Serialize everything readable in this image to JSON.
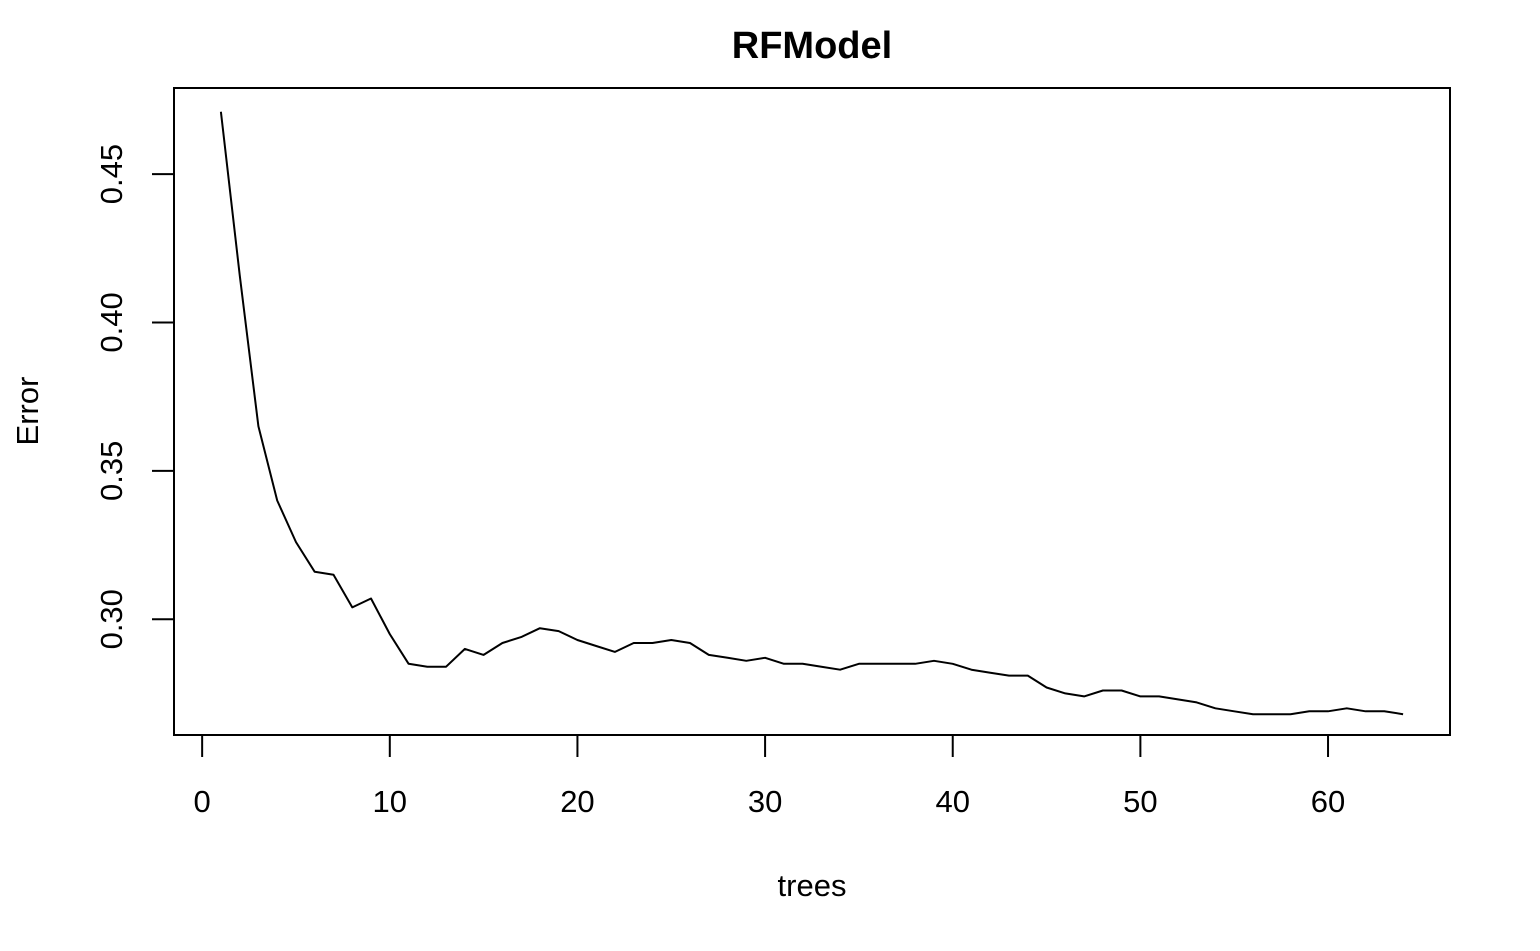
{
  "chart_data": {
    "type": "line",
    "title": "RFModel",
    "xlabel": "trees",
    "ylabel": "Error",
    "xlim": [
      -1.5,
      66.5
    ],
    "ylim": [
      0.261,
      0.479
    ],
    "xticks": [
      0,
      10,
      20,
      30,
      40,
      50,
      60
    ],
    "xtick_labels": [
      "0",
      "10",
      "20",
      "30",
      "40",
      "50",
      "60"
    ],
    "yticks": [
      0.3,
      0.35,
      0.4,
      0.45
    ],
    "ytick_labels": [
      "0.30",
      "0.35",
      "0.40",
      "0.45"
    ],
    "grid": false,
    "series": [
      {
        "x": [
          1,
          2,
          3,
          4,
          5,
          6,
          7,
          8,
          9,
          10,
          11,
          12,
          13,
          14,
          15,
          16,
          17,
          18,
          19,
          20,
          21,
          22,
          23,
          24,
          25,
          26,
          27,
          28,
          29,
          30,
          31,
          32,
          33,
          34,
          35,
          36,
          37,
          38,
          39,
          40,
          41,
          42,
          43,
          44,
          45,
          46,
          47,
          48,
          49,
          50,
          51,
          52,
          53,
          54,
          55,
          56,
          57,
          58,
          59,
          60,
          61,
          62,
          63,
          64
        ],
        "values": [
          0.471,
          0.416,
          0.365,
          0.34,
          0.326,
          0.316,
          0.315,
          0.304,
          0.307,
          0.295,
          0.285,
          0.284,
          0.284,
          0.29,
          0.288,
          0.292,
          0.294,
          0.297,
          0.296,
          0.293,
          0.291,
          0.289,
          0.292,
          0.292,
          0.293,
          0.292,
          0.288,
          0.287,
          0.286,
          0.287,
          0.285,
          0.285,
          0.284,
          0.283,
          0.285,
          0.285,
          0.285,
          0.285,
          0.286,
          0.285,
          0.283,
          0.282,
          0.281,
          0.281,
          0.277,
          0.275,
          0.274,
          0.276,
          0.276,
          0.274,
          0.274,
          0.273,
          0.272,
          0.27,
          0.269,
          0.268,
          0.268,
          0.268,
          0.269,
          0.269,
          0.27,
          0.269,
          0.269,
          0.268
        ]
      }
    ]
  }
}
